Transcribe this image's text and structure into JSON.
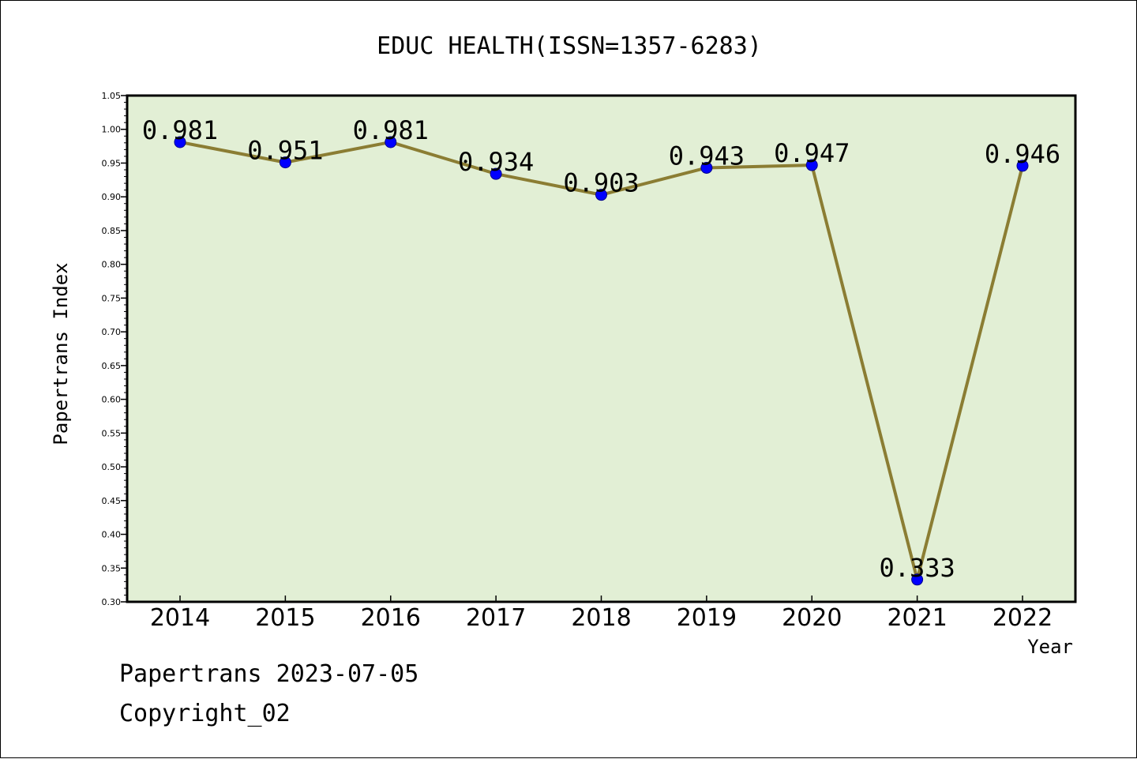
{
  "chart_data": {
    "type": "line",
    "title": "EDUC HEALTH(ISSN=1357-6283)",
    "xlabel": "Year",
    "ylabel": "Papertrans Index",
    "categories": [
      "2014",
      "2015",
      "2016",
      "2017",
      "2018",
      "2019",
      "2020",
      "2021",
      "2022"
    ],
    "values": [
      0.981,
      0.951,
      0.981,
      0.934,
      0.903,
      0.943,
      0.947,
      0.333,
      0.946
    ],
    "data_labels": [
      "0.981",
      "0.951",
      "0.981",
      "0.934",
      "0.903",
      "0.943",
      "0.947",
      "0.333",
      "0.946"
    ],
    "ylim": [
      0.3,
      1.05
    ],
    "yticks": [
      "0.30",
      "0.35",
      "0.40",
      "0.45",
      "0.50",
      "0.55",
      "0.60",
      "0.65",
      "0.70",
      "0.75",
      "0.80",
      "0.85",
      "0.90",
      "0.95",
      "1.00",
      "1.05"
    ],
    "grid": false,
    "legend": "none",
    "colors": {
      "plot_background": "#e2efd5",
      "line": "#8b7d33",
      "marker": "#0000ff",
      "marker_edge": "#00008b"
    }
  },
  "footer": {
    "date_text": "Papertrans 2023-07-05",
    "copyright_text": "Copyright_02"
  }
}
